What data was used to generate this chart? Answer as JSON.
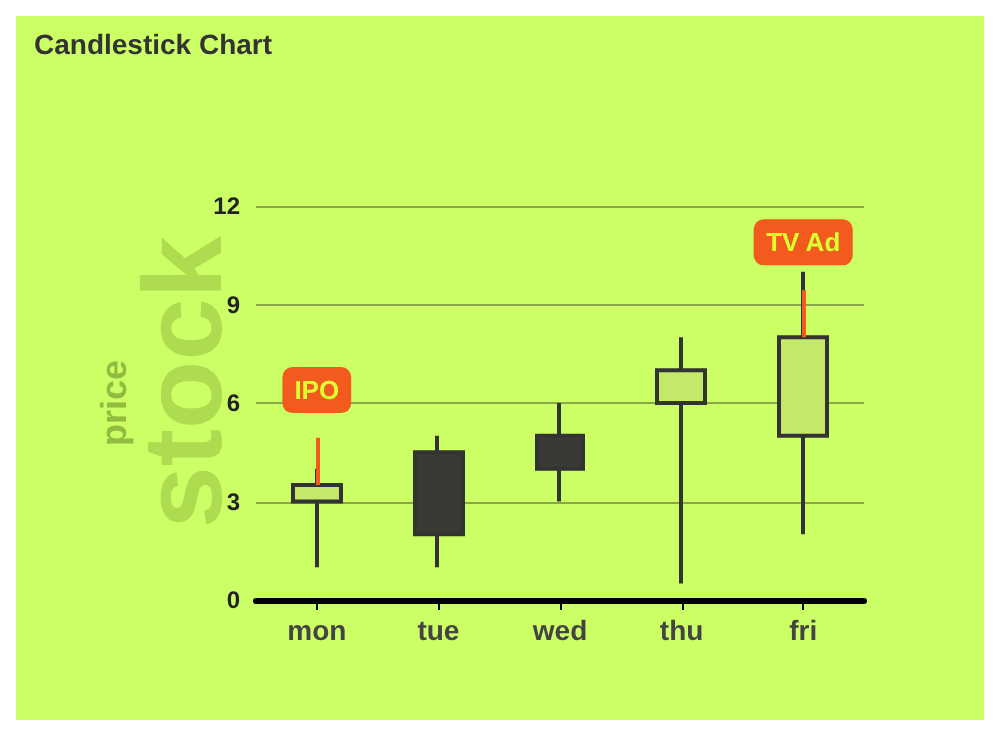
{
  "chart_data": {
    "type": "candlestick",
    "title": "Candlestick Chart",
    "ylabel": "price",
    "categories": [
      "mon",
      "tue",
      "wed",
      "thu",
      "fri"
    ],
    "ohlc": [
      [
        3,
        4,
        1,
        3.5
      ],
      [
        4.5,
        5,
        1,
        2
      ],
      [
        5,
        6,
        3,
        4
      ],
      [
        6,
        8,
        0.5,
        7
      ],
      [
        5,
        10,
        2,
        8
      ]
    ],
    "colors": [
      "#c4e86a",
      "#3a3a35",
      "#3a3a35",
      "#c4e86a",
      "#c4e86a"
    ],
    "ylim": [
      0,
      12
    ],
    "yticks": [
      0,
      3,
      6,
      9,
      12
    ],
    "grid": "y",
    "annotations": [
      "stock",
      {
        "text": "IPO",
        "x": "mon",
        "y": 3.5
      },
      {
        "text": "TV Ad",
        "x": "fri",
        "y": 8
      }
    ]
  }
}
